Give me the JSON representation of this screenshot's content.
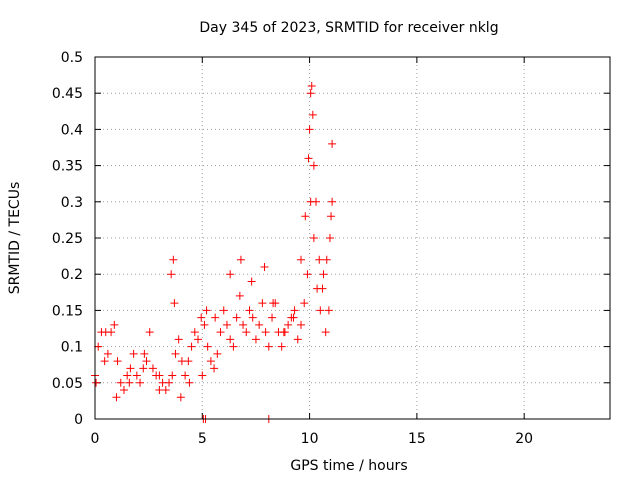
{
  "chart_data": {
    "type": "scatter",
    "title": "Day 345 of 2023, SRMTID for receiver nklg",
    "xlabel": "GPS time / hours",
    "ylabel": "SRMTID / TECUs",
    "xlim": [
      0,
      24
    ],
    "ylim": [
      0,
      0.5
    ],
    "x_ticks": [
      "0",
      "5",
      "10",
      "15",
      "20"
    ],
    "y_ticks": [
      "0",
      "0.05",
      "0.1",
      "0.15",
      "0.2",
      "0.25",
      "0.3",
      "0.35",
      "0.4",
      "0.45",
      "0.5"
    ],
    "grid": true,
    "marker": "plus",
    "series": [
      {
        "name": "nklg",
        "color": "#ff0000",
        "x": [
          0.0,
          0.15,
          0.3,
          0.45,
          0.6,
          0.75,
          0.9,
          1.05,
          1.2,
          1.35,
          1.5,
          1.65,
          1.8,
          1.95,
          2.1,
          2.25,
          2.4,
          2.55,
          2.7,
          2.85,
          3.0,
          3.15,
          3.3,
          3.45,
          3.6,
          3.75,
          3.9,
          4.05,
          4.2,
          4.35,
          4.5,
          4.65,
          4.8,
          4.95,
          5.1,
          5.25,
          5.4,
          5.55,
          5.7,
          5.85,
          6.0,
          6.15,
          6.3,
          6.45,
          6.6,
          6.75,
          6.9,
          7.05,
          7.2,
          7.35,
          7.5,
          7.65,
          7.8,
          7.95,
          8.1,
          8.25,
          8.4,
          8.55,
          8.7,
          8.85,
          9.0,
          9.15,
          9.3,
          9.45,
          9.6,
          9.75,
          9.9,
          10.05,
          10.2,
          10.35,
          10.5,
          10.65,
          10.8,
          10.95,
          11.05,
          0.05,
          0.5,
          1.0,
          1.6,
          2.3,
          3.0,
          3.55,
          3.65,
          3.7,
          4.0,
          4.4,
          5.0,
          5.2,
          5.6,
          6.3,
          6.8,
          7.3,
          7.9,
          8.3,
          8.8,
          9.25,
          9.6,
          9.8,
          9.95,
          10.0,
          10.05,
          10.1,
          10.15,
          10.2,
          10.3,
          10.45,
          10.6,
          10.75,
          10.9,
          11.0,
          11.05,
          5.05,
          5.15,
          8.1
        ],
        "y": [
          0.06,
          0.1,
          0.12,
          0.08,
          0.09,
          0.12,
          0.13,
          0.08,
          0.05,
          0.04,
          0.06,
          0.07,
          0.09,
          0.06,
          0.05,
          0.07,
          0.08,
          0.12,
          0.07,
          0.06,
          0.06,
          0.05,
          0.04,
          0.05,
          0.06,
          0.09,
          0.11,
          0.08,
          0.06,
          0.08,
          0.1,
          0.12,
          0.11,
          0.14,
          0.13,
          0.1,
          0.08,
          0.07,
          0.09,
          0.12,
          0.15,
          0.13,
          0.11,
          0.1,
          0.14,
          0.17,
          0.13,
          0.12,
          0.15,
          0.14,
          0.11,
          0.13,
          0.16,
          0.12,
          0.1,
          0.14,
          0.16,
          0.12,
          0.1,
          0.12,
          0.13,
          0.14,
          0.15,
          0.11,
          0.13,
          0.16,
          0.2,
          0.3,
          0.25,
          0.18,
          0.15,
          0.2,
          0.22,
          0.25,
          0.3,
          0.05,
          0.12,
          0.03,
          0.05,
          0.09,
          0.04,
          0.2,
          0.22,
          0.16,
          0.03,
          0.05,
          0.06,
          0.15,
          0.14,
          0.2,
          0.22,
          0.19,
          0.21,
          0.16,
          0.12,
          0.14,
          0.22,
          0.28,
          0.36,
          0.4,
          0.45,
          0.46,
          0.42,
          0.35,
          0.3,
          0.22,
          0.18,
          0.12,
          0.15,
          0.28,
          0.38,
          0.0,
          0.0,
          0.0
        ]
      }
    ]
  }
}
